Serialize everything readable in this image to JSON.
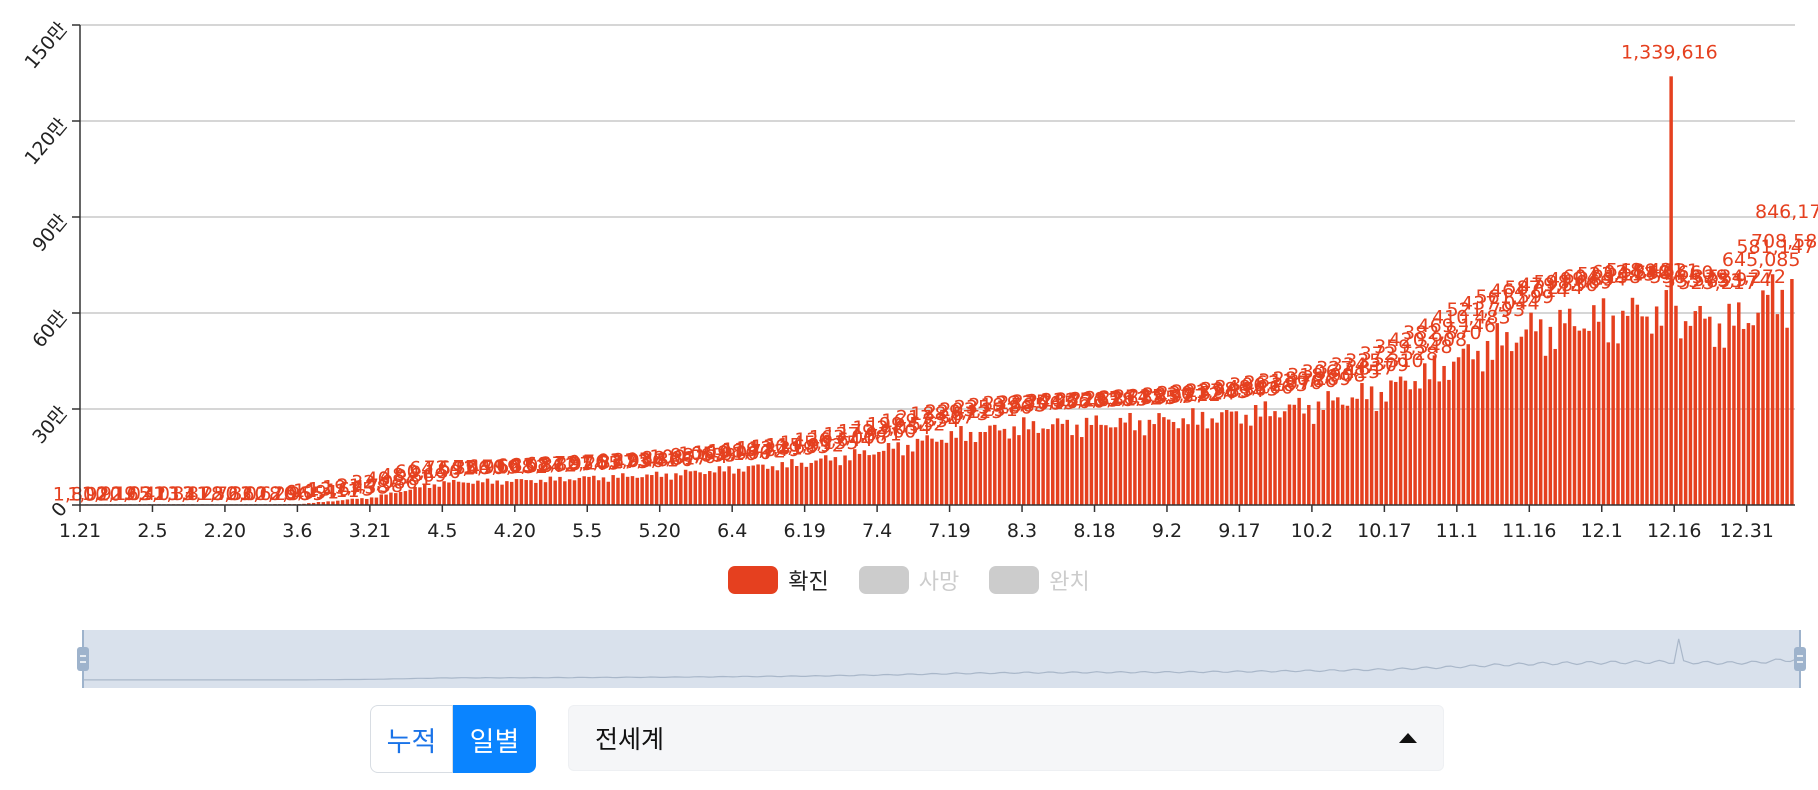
{
  "chart_data": {
    "type": "bar",
    "y_ticks": [
      "0",
      "30만",
      "60만",
      "90만",
      "120만",
      "150만"
    ],
    "ylim": [
      0,
      1500000
    ],
    "x_tick_labels": [
      "1.21",
      "2.5",
      "2.20",
      "3.6",
      "3.21",
      "4.5",
      "4.20",
      "5.5",
      "5.20",
      "6.4",
      "6.19",
      "7.4",
      "7.19",
      "8.3",
      "8.18",
      "9.2",
      "9.17",
      "10.2",
      "10.17",
      "11.1",
      "11.16",
      "12.1",
      "12.16",
      "12.31"
    ],
    "x_tick_days": [
      0,
      15,
      30,
      45,
      60,
      75,
      90,
      105,
      120,
      135,
      150,
      165,
      180,
      195,
      210,
      225,
      240,
      255,
      270,
      285,
      300,
      315,
      330,
      345
    ],
    "n_days": 355,
    "trend_days": [
      0,
      15,
      30,
      45,
      60,
      75,
      90,
      105,
      120,
      135,
      150,
      165,
      180,
      195,
      210,
      225,
      240,
      255,
      270,
      285,
      290,
      300,
      315,
      325,
      330,
      338,
      345,
      350,
      354
    ],
    "trend_values": [
      2000,
      2500,
      2200,
      3000,
      25000,
      75000,
      80000,
      90000,
      100000,
      120000,
      140000,
      180000,
      230000,
      260000,
      270000,
      280000,
      300000,
      330000,
      380000,
      480000,
      520000,
      580000,
      620000,
      640000,
      630000,
      600000,
      620000,
      700000,
      720000
    ],
    "series": [
      {
        "name": "확진",
        "color": "#e5401f",
        "visible": true
      },
      {
        "name": "사망",
        "color": "#cccccc",
        "visible": false
      },
      {
        "name": "완치",
        "color": "#cccccc",
        "visible": false
      }
    ],
    "peak": {
      "day": 329,
      "value": 1339616,
      "label": "1,339,616"
    },
    "last_value_label": "846,17"
  },
  "controls": {
    "mode_options": [
      {
        "label": "누적",
        "active": false
      },
      {
        "label": "일별",
        "active": true
      }
    ],
    "region": "전세계"
  },
  "colors": {
    "accent": "#0a84ff",
    "bar": "#e5401f",
    "inactive": "#cccccc",
    "navigator_bg": "#d9e1ec",
    "navigator_handle": "#9eb3cc"
  }
}
